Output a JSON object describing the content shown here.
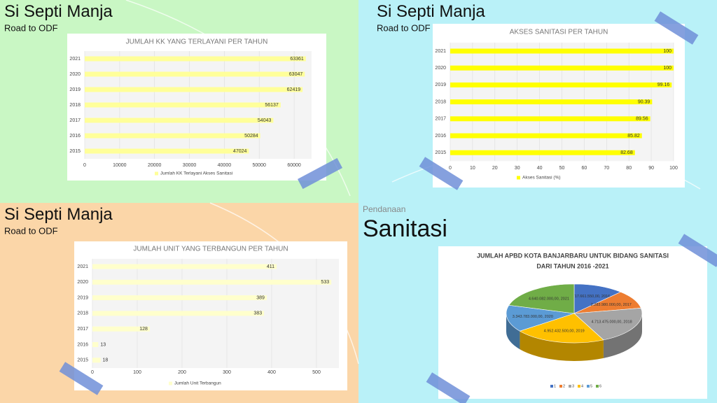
{
  "slides": [
    {
      "title": "Si Septi Manja",
      "subtitle": "Road to ODF"
    },
    {
      "title": "Si Septi Manja",
      "subtitle": "Road to ODF"
    },
    {
      "title": "Si Septi Manja",
      "subtitle": "Road to ODF"
    },
    {
      "kicker": "Pendanaan",
      "title": "Sanitasi"
    }
  ],
  "chart_data": [
    {
      "type": "hbar",
      "title": "JUMLAH KK YANG TERLAYANI PER TAHUN",
      "categories": [
        "2021",
        "2020",
        "2019",
        "2018",
        "2017",
        "2016",
        "2015"
      ],
      "series": [
        {
          "name": "Jumlah KK Terlayani Akses Sanitasi",
          "color": "#ffff99",
          "values": [
            63361,
            63047,
            62419,
            56137,
            54043,
            50284,
            47024
          ]
        }
      ],
      "xlim": [
        0,
        65000
      ],
      "xticks": [
        0,
        10000,
        20000,
        30000,
        40000,
        50000,
        60000
      ],
      "grid": true
    },
    {
      "type": "hbar",
      "title": "AKSES SANITASI PER TAHUN",
      "categories": [
        "2021",
        "2020",
        "2019",
        "2018",
        "2017",
        "2016",
        "2015"
      ],
      "series": [
        {
          "name": "Akses Sanitasi (%)",
          "color": "#ffff00",
          "values": [
            100,
            100,
            99.16,
            90.39,
            89.56,
            85.82,
            82.68
          ]
        }
      ],
      "xlim": [
        0,
        100
      ],
      "xticks": [
        0,
        10,
        20,
        30,
        40,
        50,
        60,
        70,
        80,
        90,
        100
      ],
      "grid": true
    },
    {
      "type": "hbar",
      "title": "JUMLAH UNIT YANG TERBANGUN PER TAHUN",
      "categories": [
        "2021",
        "2020",
        "2019",
        "2018",
        "2017",
        "2016",
        "2015"
      ],
      "series": [
        {
          "name": "Jumlah Unit Terbangun",
          "color": "#ffffcc",
          "values": [
            411,
            533,
            389,
            383,
            128,
            13,
            18
          ]
        }
      ],
      "xlim": [
        0,
        550
      ],
      "xticks": [
        0,
        100,
        200,
        300,
        400,
        500
      ],
      "grid": true
    },
    {
      "type": "pie3d",
      "title": [
        "JUMLAH APBD KOTA BANJARBARU UNTUK BIDANG SANITASI",
        "DARI TAHUN 2016 -2021"
      ],
      "legend": [
        "1",
        "2",
        "3",
        "4",
        "5",
        "6"
      ],
      "colors": [
        "#4472c4",
        "#ed7d31",
        "#a5a5a5",
        "#ffc000",
        "#5b9bd5",
        "#70ad47"
      ],
      "values": [
        2717661550,
        2283980000,
        4713475000,
        4952432500,
        3343783000,
        4640082000
      ],
      "value_labels": [
        "2.717.661.550,00, 2016",
        "2.283.980.000,00, 2017",
        "4.713.475.000,00, 2018",
        "4.952.432.500,00, 2019",
        "3.343.783.000,00, 2020",
        "4.640.082.000,00, 2021"
      ]
    }
  ]
}
